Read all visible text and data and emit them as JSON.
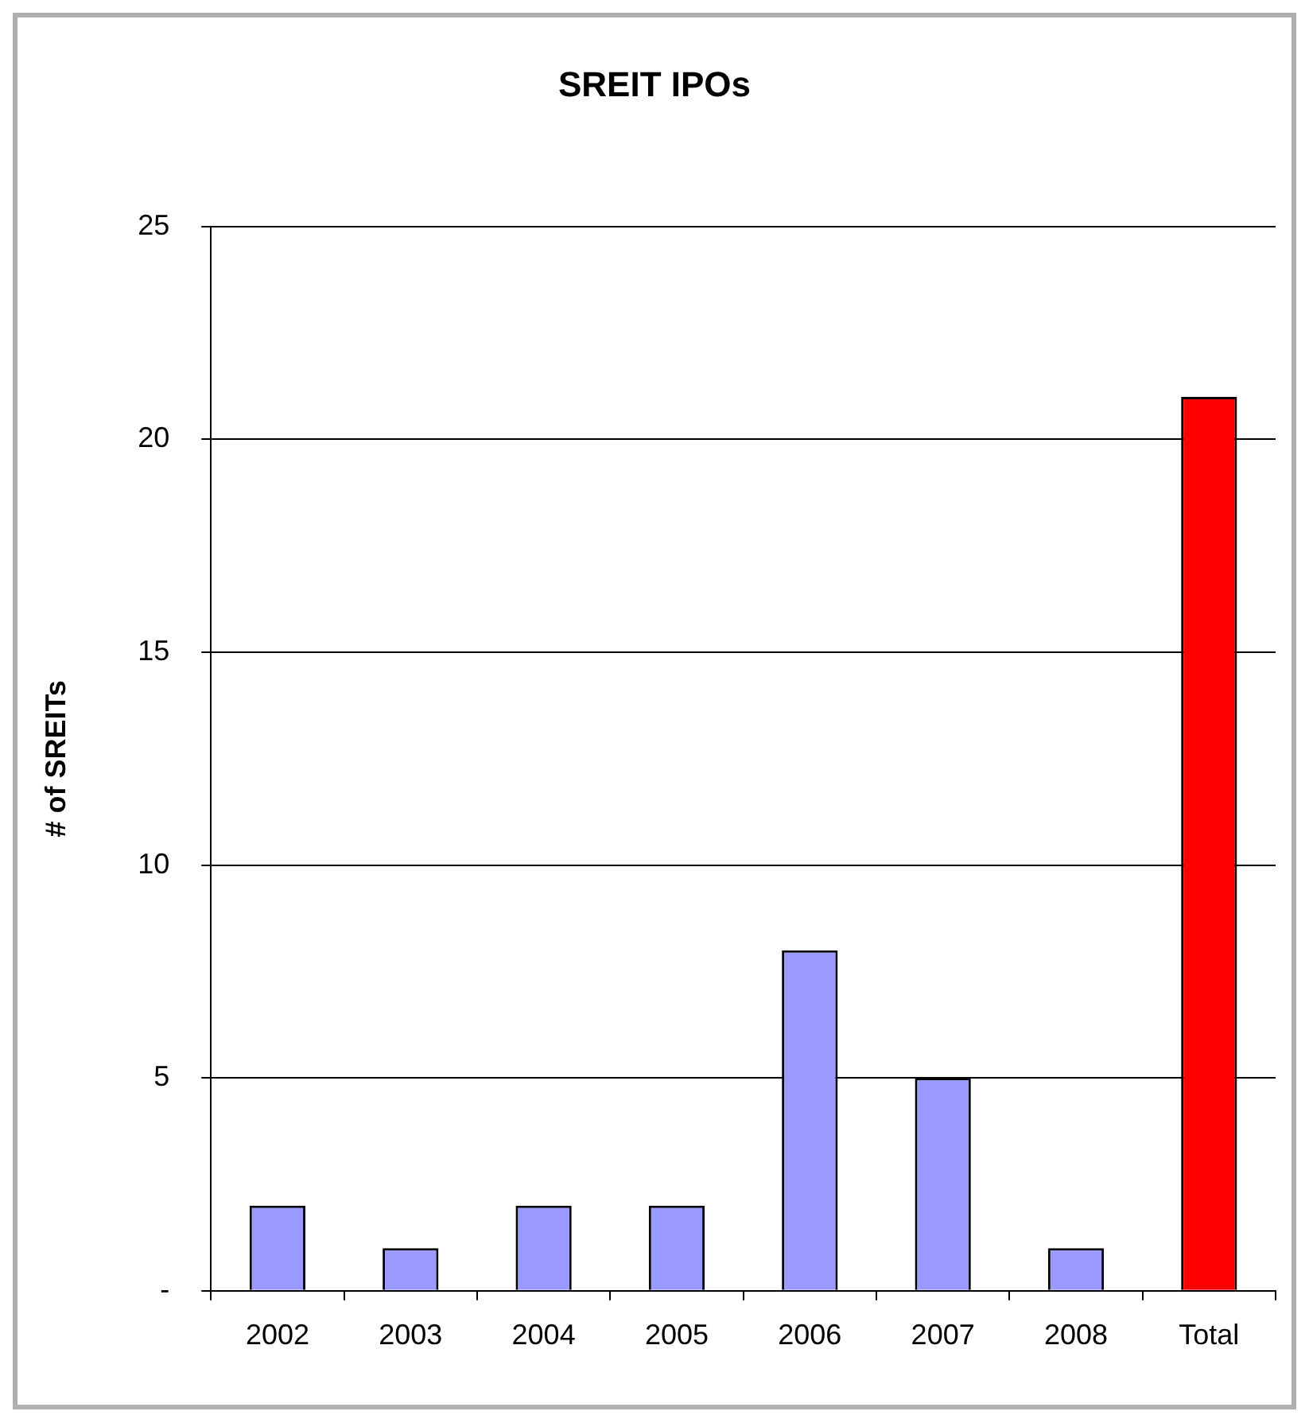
{
  "chart_data": {
    "type": "bar",
    "title": "SREIT IPOs",
    "ylabel": "# of SREITs",
    "categories": [
      "2002",
      "2003",
      "2004",
      "2005",
      "2006",
      "2007",
      "2008",
      "Total"
    ],
    "values": [
      2,
      1,
      2,
      2,
      8,
      5,
      1,
      21
    ],
    "colors": [
      "#9999ff",
      "#9999ff",
      "#9999ff",
      "#9999ff",
      "#9999ff",
      "#9999ff",
      "#9999ff",
      "#ff0000"
    ],
    "ylim": [
      0,
      25
    ],
    "yticks": [
      {
        "value": 0,
        "label": "-"
      },
      5,
      10,
      15,
      20,
      25
    ],
    "grid": "y",
    "legend": false
  }
}
